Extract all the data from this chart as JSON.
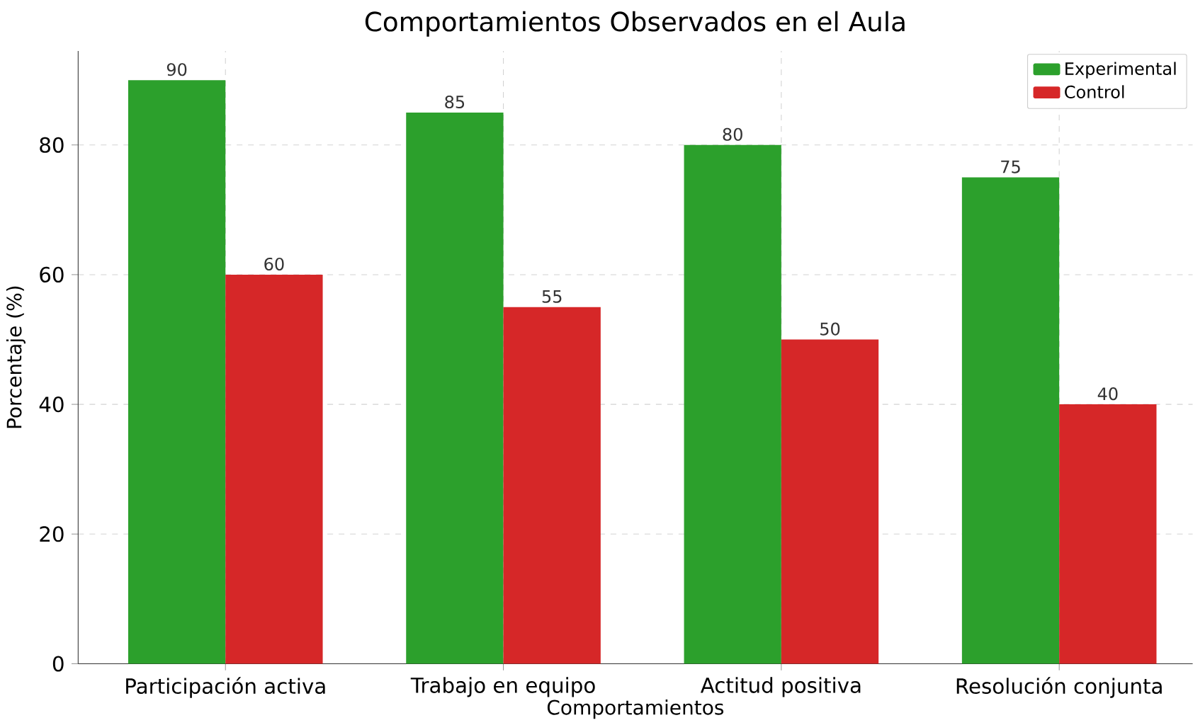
{
  "chart_data": {
    "type": "bar",
    "title": "Comportamientos Observados en el Aula",
    "xlabel": "Comportamientos",
    "ylabel": "Porcentaje (%)",
    "categories": [
      "Participación activa",
      "Trabajo en equipo",
      "Actitud positiva",
      "Resolución conjunta"
    ],
    "series": [
      {
        "name": "Experimental",
        "color": "#2ca02c",
        "values": [
          90,
          85,
          80,
          75
        ]
      },
      {
        "name": "Control",
        "color": "#d62728",
        "values": [
          60,
          55,
          50,
          40
        ]
      }
    ],
    "ylim": [
      0,
      94.5
    ],
    "yticks": [
      0,
      20,
      40,
      60,
      80
    ],
    "grid": true,
    "legend": "top right",
    "data_labels": true
  }
}
